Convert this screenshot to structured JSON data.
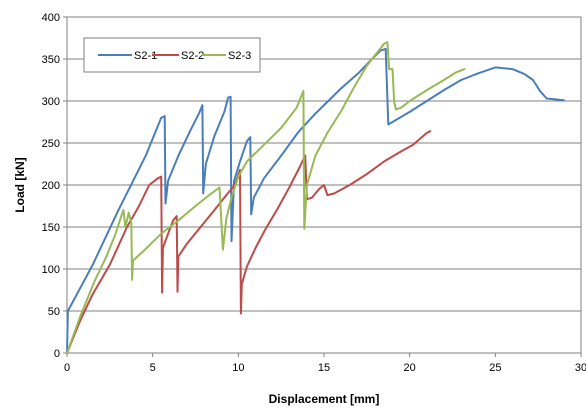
{
  "chart_data": {
    "type": "line",
    "xlabel": "Displacement [mm]",
    "ylabel": "Load [kN]",
    "xlim": [
      0,
      30
    ],
    "ylim": [
      0,
      400
    ],
    "x_ticks": [
      "0",
      "5",
      "10",
      "15",
      "20",
      "25",
      "30"
    ],
    "y_ticks": [
      "0",
      "50",
      "100",
      "150",
      "200",
      "250",
      "300",
      "350",
      "400"
    ],
    "grid": "horizontal",
    "legend_position": "top-left",
    "series": [
      {
        "name": "S2-1",
        "color": "#4a7ebb",
        "points": [
          [
            0,
            0
          ],
          [
            0.05,
            50
          ],
          [
            1.5,
            105
          ],
          [
            3.0,
            170
          ],
          [
            4.6,
            235
          ],
          [
            5.5,
            280
          ],
          [
            5.7,
            282
          ],
          [
            5.75,
            178
          ],
          [
            5.9,
            205
          ],
          [
            6.5,
            235
          ],
          [
            7.2,
            265
          ],
          [
            7.7,
            285
          ],
          [
            7.9,
            295
          ],
          [
            7.95,
            190
          ],
          [
            8.1,
            225
          ],
          [
            8.6,
            258
          ],
          [
            9.2,
            288
          ],
          [
            9.4,
            304
          ],
          [
            9.55,
            305
          ],
          [
            9.6,
            133
          ],
          [
            9.75,
            205
          ],
          [
            10.1,
            228
          ],
          [
            10.5,
            252
          ],
          [
            10.7,
            257
          ],
          [
            10.75,
            165
          ],
          [
            10.9,
            185
          ],
          [
            11.5,
            208
          ],
          [
            12.5,
            235
          ],
          [
            13.5,
            263
          ],
          [
            14.5,
            285
          ],
          [
            16.0,
            315
          ],
          [
            17.0,
            333
          ],
          [
            17.8,
            350
          ],
          [
            18.3,
            360
          ],
          [
            18.6,
            362
          ],
          [
            18.75,
            272
          ],
          [
            19.0,
            275
          ],
          [
            20.0,
            287
          ],
          [
            21.0,
            300
          ],
          [
            22.0,
            313
          ],
          [
            23.0,
            325
          ],
          [
            24.0,
            333
          ],
          [
            25.0,
            340
          ],
          [
            26.0,
            338
          ],
          [
            26.7,
            332
          ],
          [
            27.2,
            325
          ],
          [
            27.6,
            312
          ],
          [
            28.0,
            303
          ],
          [
            29.0,
            301
          ]
        ]
      },
      {
        "name": "S2-2",
        "color": "#be4b48",
        "points": [
          [
            0,
            0
          ],
          [
            0.8,
            40
          ],
          [
            1.5,
            70
          ],
          [
            2.5,
            105
          ],
          [
            3.5,
            150
          ],
          [
            4.2,
            175
          ],
          [
            4.8,
            200
          ],
          [
            5.3,
            208
          ],
          [
            5.5,
            210
          ],
          [
            5.55,
            72
          ],
          [
            5.6,
            125
          ],
          [
            5.9,
            142
          ],
          [
            6.2,
            158
          ],
          [
            6.4,
            163
          ],
          [
            6.45,
            73
          ],
          [
            6.5,
            115
          ],
          [
            7.0,
            130
          ],
          [
            7.8,
            150
          ],
          [
            8.6,
            170
          ],
          [
            9.3,
            188
          ],
          [
            9.8,
            200
          ],
          [
            10.1,
            218
          ],
          [
            10.15,
            47
          ],
          [
            10.2,
            82
          ],
          [
            10.5,
            103
          ],
          [
            11.0,
            125
          ],
          [
            11.6,
            148
          ],
          [
            12.3,
            172
          ],
          [
            13.0,
            198
          ],
          [
            13.6,
            222
          ],
          [
            13.9,
            235
          ],
          [
            14.0,
            183
          ],
          [
            14.3,
            185
          ],
          [
            14.7,
            195
          ],
          [
            15.0,
            200
          ],
          [
            15.2,
            188
          ],
          [
            15.6,
            190
          ],
          [
            16.5,
            200
          ],
          [
            17.5,
            213
          ],
          [
            18.5,
            228
          ],
          [
            19.5,
            240
          ],
          [
            20.2,
            248
          ],
          [
            21.0,
            262
          ],
          [
            21.2,
            264
          ]
        ]
      },
      {
        "name": "S2-3",
        "color": "#98b954",
        "points": [
          [
            0,
            0
          ],
          [
            0.8,
            45
          ],
          [
            1.6,
            85
          ],
          [
            2.3,
            115
          ],
          [
            2.8,
            140
          ],
          [
            3.2,
            165
          ],
          [
            3.3,
            170
          ],
          [
            3.4,
            150
          ],
          [
            3.5,
            158
          ],
          [
            3.6,
            167
          ],
          [
            3.75,
            155
          ],
          [
            3.8,
            87
          ],
          [
            3.85,
            110
          ],
          [
            4.5,
            122
          ],
          [
            5.5,
            142
          ],
          [
            6.5,
            158
          ],
          [
            7.5,
            175
          ],
          [
            8.3,
            188
          ],
          [
            8.9,
            197
          ],
          [
            9.1,
            123
          ],
          [
            9.3,
            160
          ],
          [
            9.6,
            185
          ],
          [
            10.0,
            210
          ],
          [
            10.5,
            228
          ],
          [
            11.5,
            248
          ],
          [
            12.5,
            268
          ],
          [
            13.4,
            292
          ],
          [
            13.8,
            312
          ],
          [
            13.85,
            148
          ],
          [
            14.0,
            200
          ],
          [
            14.5,
            235
          ],
          [
            15.2,
            262
          ],
          [
            16.0,
            288
          ],
          [
            16.8,
            318
          ],
          [
            17.5,
            342
          ],
          [
            18.0,
            355
          ],
          [
            18.5,
            368
          ],
          [
            18.7,
            370
          ],
          [
            18.8,
            338
          ],
          [
            19.0,
            338
          ],
          [
            19.1,
            298
          ],
          [
            19.2,
            290
          ],
          [
            19.5,
            292
          ],
          [
            20.0,
            300
          ],
          [
            21.0,
            313
          ],
          [
            22.0,
            325
          ],
          [
            22.7,
            334
          ],
          [
            23.2,
            338
          ]
        ]
      }
    ]
  }
}
